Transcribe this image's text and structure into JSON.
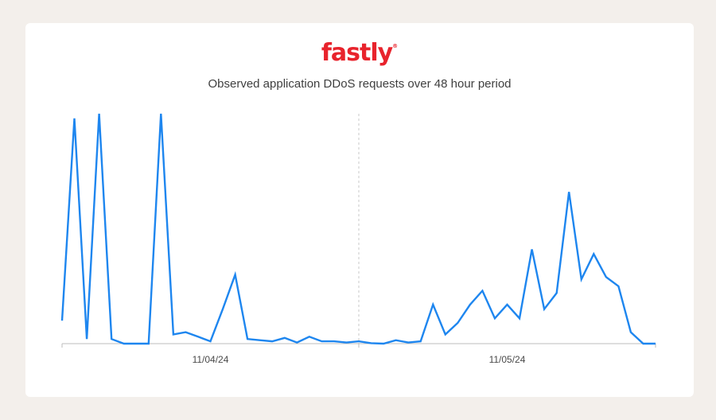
{
  "brand": {
    "logo_text": "fastly",
    "logo_mark": "®"
  },
  "colors": {
    "background": "#f3efeb",
    "card": "#ffffff",
    "line": "#1e86ef",
    "logo": "#e8232c"
  },
  "chart_data": {
    "type": "line",
    "title": "Observed application DDoS requests over 48 hour period",
    "xlabel": "",
    "ylabel": "",
    "x_ticks": [
      "11/04/24",
      "11/05/24"
    ],
    "day_divider": true,
    "grid": false,
    "y_axis_shown": false,
    "xlim": [
      0,
      48
    ],
    "ylim": [
      0,
      100
    ],
    "series": [
      {
        "values": [
          [
            0,
            10
          ],
          [
            1,
            98
          ],
          [
            2,
            2
          ],
          [
            3,
            100
          ],
          [
            4,
            2
          ],
          [
            5,
            0
          ],
          [
            6,
            0
          ],
          [
            7,
            0
          ],
          [
            8,
            100
          ],
          [
            9,
            4
          ],
          [
            10,
            5
          ],
          [
            11,
            3
          ],
          [
            12,
            1
          ],
          [
            13,
            15
          ],
          [
            14,
            30
          ],
          [
            15,
            2
          ],
          [
            16,
            1.5
          ],
          [
            17,
            1
          ],
          [
            18,
            2.5
          ],
          [
            19,
            0.5
          ],
          [
            20,
            3
          ],
          [
            21,
            1
          ],
          [
            22,
            1
          ],
          [
            23,
            0.5
          ],
          [
            24,
            1
          ],
          [
            25,
            0.2
          ],
          [
            26,
            0
          ],
          [
            27,
            1.5
          ],
          [
            28,
            0.5
          ],
          [
            29,
            1
          ],
          [
            30,
            17
          ],
          [
            31,
            4
          ],
          [
            32,
            9
          ],
          [
            33,
            17
          ],
          [
            34,
            23
          ],
          [
            35,
            11
          ],
          [
            36,
            17
          ],
          [
            37,
            11
          ],
          [
            38,
            41
          ],
          [
            39,
            15
          ],
          [
            40,
            22
          ],
          [
            41,
            66
          ],
          [
            42,
            28
          ],
          [
            43,
            39
          ],
          [
            44,
            29
          ],
          [
            45,
            25
          ],
          [
            46,
            5
          ],
          [
            47,
            0
          ],
          [
            48,
            0
          ]
        ]
      }
    ]
  }
}
